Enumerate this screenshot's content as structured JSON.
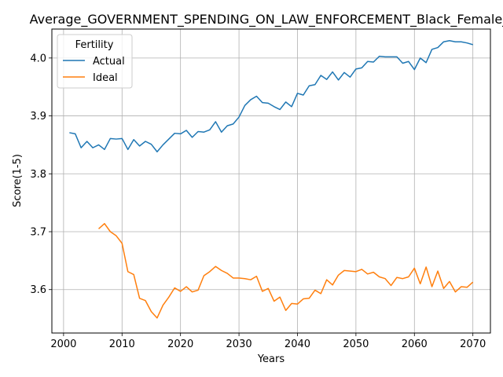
{
  "chart_data": {
    "type": "line",
    "title": "Average_GOVERNMENT_SPENDING_ON_LAW_ENFORCEMENT_Black_Female_C",
    "xlabel": "Years",
    "ylabel": "Score(1-5)",
    "xlim": [
      1998,
      2073
    ],
    "ylim": [
      3.525,
      4.05
    ],
    "xticks": [
      2000,
      2010,
      2020,
      2030,
      2040,
      2050,
      2060,
      2070
    ],
    "yticks": [
      3.6,
      3.7,
      3.8,
      3.9,
      4.0
    ],
    "ytick_labels": [
      "3.6",
      "3.7",
      "3.8",
      "3.9",
      "4.0"
    ],
    "grid": true,
    "legend": {
      "title": "Fertility",
      "placement": "top-left"
    },
    "series": [
      {
        "name": "Actual",
        "color": "#1f77b4",
        "x": [
          2001,
          2002,
          2003,
          2004,
          2005,
          2006,
          2007,
          2008,
          2009,
          2010,
          2011,
          2012,
          2013,
          2014,
          2015,
          2016,
          2017,
          2018,
          2019,
          2020,
          2021,
          2022,
          2023,
          2024,
          2025,
          2026,
          2027,
          2028,
          2029,
          2030,
          2031,
          2032,
          2033,
          2034,
          2035,
          2036,
          2037,
          2038,
          2039,
          2040,
          2041,
          2042,
          2043,
          2044,
          2045,
          2046,
          2047,
          2048,
          2049,
          2050,
          2051,
          2052,
          2053,
          2054,
          2055,
          2056,
          2057,
          2058,
          2059,
          2060,
          2061,
          2062,
          2063,
          2064,
          2065,
          2066,
          2067,
          2068,
          2069,
          2070
        ],
        "values": [
          3.871,
          3.869,
          3.845,
          3.856,
          3.845,
          3.85,
          3.842,
          3.861,
          3.86,
          3.861,
          3.842,
          3.859,
          3.848,
          3.856,
          3.851,
          3.838,
          3.85,
          3.86,
          3.87,
          3.869,
          3.875,
          3.863,
          3.873,
          3.872,
          3.876,
          3.89,
          3.872,
          3.883,
          3.886,
          3.898,
          3.918,
          3.928,
          3.934,
          3.923,
          3.922,
          3.916,
          3.911,
          3.924,
          3.916,
          3.939,
          3.936,
          3.952,
          3.954,
          3.97,
          3.963,
          3.976,
          3.962,
          3.975,
          3.967,
          3.981,
          3.983,
          3.994,
          3.993,
          4.003,
          4.002,
          4.002,
          4.002,
          3.991,
          3.994,
          3.98,
          4.0,
          3.992,
          4.015,
          4.018,
          4.028,
          4.03,
          4.028,
          4.028,
          4.026,
          4.023
        ]
      },
      {
        "name": "Ideal",
        "color": "#ff7f0e",
        "x": [
          2006,
          2007,
          2008,
          2009,
          2010,
          2011,
          2012,
          2013,
          2014,
          2015,
          2016,
          2017,
          2018,
          2019,
          2020,
          2021,
          2022,
          2023,
          2024,
          2025,
          2026,
          2027,
          2028,
          2029,
          2030,
          2031,
          2032,
          2033,
          2034,
          2035,
          2036,
          2037,
          2038,
          2039,
          2040,
          2041,
          2042,
          2043,
          2044,
          2045,
          2046,
          2047,
          2048,
          2049,
          2050,
          2051,
          2052,
          2053,
          2054,
          2055,
          2056,
          2057,
          2058,
          2059,
          2060,
          2061,
          2062,
          2063,
          2064,
          2065,
          2066,
          2067,
          2068,
          2069,
          2070
        ],
        "values": [
          3.705,
          3.714,
          3.7,
          3.693,
          3.68,
          3.631,
          3.626,
          3.585,
          3.581,
          3.562,
          3.551,
          3.573,
          3.587,
          3.603,
          3.597,
          3.605,
          3.596,
          3.599,
          3.624,
          3.631,
          3.64,
          3.633,
          3.628,
          3.62,
          3.62,
          3.619,
          3.617,
          3.623,
          3.597,
          3.602,
          3.58,
          3.587,
          3.564,
          3.576,
          3.575,
          3.584,
          3.585,
          3.599,
          3.593,
          3.617,
          3.608,
          3.625,
          3.633,
          3.632,
          3.631,
          3.635,
          3.627,
          3.63,
          3.622,
          3.619,
          3.607,
          3.621,
          3.619,
          3.622,
          3.637,
          3.61,
          3.639,
          3.605,
          3.632,
          3.602,
          3.614,
          3.596,
          3.605,
          3.604,
          3.613
        ]
      }
    ]
  }
}
